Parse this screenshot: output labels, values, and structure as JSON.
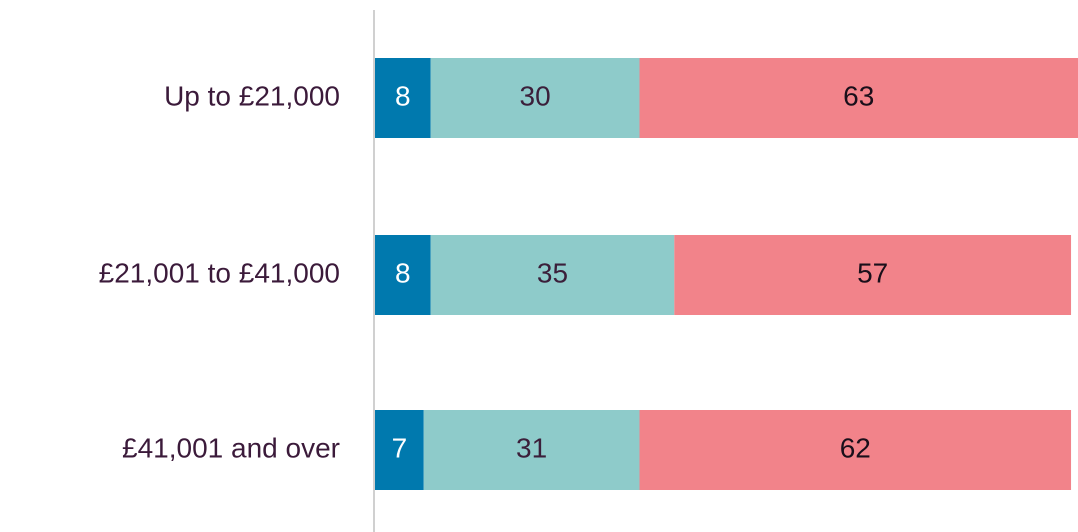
{
  "chart_data": {
    "type": "stacked-bar-horizontal",
    "categories": [
      "Up to £21,000",
      "£21,001 to £41,000",
      "£41,001 and over"
    ],
    "series": [
      {
        "color": "#0079ae",
        "values": [
          8,
          8,
          7
        ]
      },
      {
        "color": "#8ecbca",
        "values": [
          30,
          35,
          31
        ]
      },
      {
        "color": "#f2838a",
        "values": [
          63,
          57,
          62
        ]
      }
    ],
    "xlim": [
      0,
      101
    ]
  }
}
